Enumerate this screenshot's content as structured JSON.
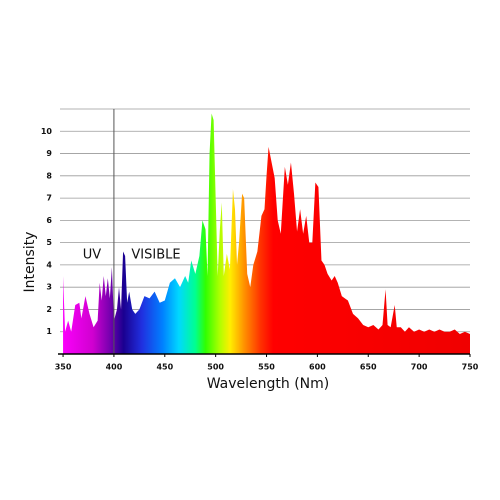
{
  "chart_data": {
    "type": "area",
    "x_label": "Wavelength (Nm)",
    "y_label": "Intensity",
    "annotations": [
      "UV",
      "VISIBLE"
    ],
    "divider_x": 400,
    "xlim": [
      347,
      750
    ],
    "ylim": [
      0,
      11
    ],
    "xticks": [
      350,
      400,
      450,
      500,
      550,
      600,
      650,
      700,
      750
    ],
    "yticks": [
      1,
      2,
      3,
      4,
      5,
      6,
      7,
      8,
      9,
      10
    ],
    "grid": true,
    "x": [
      350,
      352,
      355,
      358,
      362,
      366,
      368,
      372,
      376,
      380,
      384,
      386,
      388,
      390,
      392,
      394,
      396,
      398,
      400,
      403,
      405,
      407,
      409,
      411,
      413,
      415,
      418,
      421,
      425,
      430,
      435,
      440,
      445,
      450,
      455,
      460,
      465,
      470,
      473,
      476,
      480,
      484,
      487,
      490,
      492,
      494,
      496,
      498,
      500,
      502,
      504,
      506,
      508,
      511,
      514,
      517,
      519,
      521,
      523,
      526,
      528,
      531,
      534,
      537,
      541,
      545,
      548,
      550,
      552,
      555,
      558,
      561,
      564,
      568,
      571,
      574,
      577,
      580,
      583,
      586,
      589,
      592,
      595,
      598,
      601,
      604,
      607,
      610,
      614,
      617,
      620,
      624,
      627,
      630,
      635,
      640,
      645,
      650,
      655,
      660,
      664,
      667,
      669,
      672,
      676,
      678,
      682,
      686,
      690,
      695,
      700,
      705,
      710,
      715,
      720,
      725,
      730,
      735,
      740,
      745,
      750
    ],
    "values": [
      3.5,
      1.0,
      1.5,
      1.0,
      2.2,
      2.3,
      1.6,
      2.6,
      1.8,
      1.2,
      1.5,
      3.2,
      2.4,
      3.5,
      2.6,
      3.4,
      2.5,
      3.9,
      1.5,
      2.0,
      3.0,
      2.0,
      4.6,
      4.4,
      2.3,
      2.8,
      2.0,
      1.8,
      2.0,
      2.6,
      2.5,
      2.8,
      2.3,
      2.4,
      3.2,
      3.4,
      3.0,
      3.5,
      3.2,
      4.2,
      3.6,
      4.4,
      6.0,
      5.6,
      3.5,
      9.0,
      10.8,
      10.5,
      7.0,
      3.5,
      5.5,
      6.8,
      3.5,
      4.5,
      3.8,
      7.4,
      6.5,
      4.0,
      5.0,
      7.2,
      7.0,
      3.6,
      3.0,
      4.0,
      4.6,
      6.2,
      6.5,
      8.0,
      9.3,
      8.6,
      7.9,
      6.0,
      5.4,
      8.4,
      7.6,
      8.6,
      7.2,
      5.5,
      6.5,
      5.4,
      6.2,
      5.0,
      5.0,
      7.7,
      7.5,
      4.2,
      4.0,
      3.6,
      3.3,
      3.5,
      3.2,
      2.6,
      2.5,
      2.4,
      1.8,
      1.6,
      1.3,
      1.2,
      1.3,
      1.1,
      1.3,
      2.9,
      1.3,
      1.2,
      2.2,
      1.2,
      1.2,
      1.0,
      1.2,
      1.0,
      1.1,
      1.0,
      1.1,
      1.0,
      1.1,
      1.0,
      1.0,
      1.1,
      0.9,
      1.0,
      0.9
    ]
  }
}
